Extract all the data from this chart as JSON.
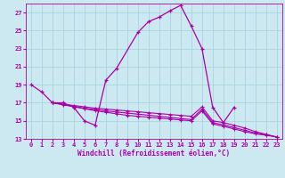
{
  "xlabel": "Windchill (Refroidissement éolien,°C)",
  "bg_color": "#cce8f0",
  "grid_color": "#a8d4e0",
  "line_color": "#aa00aa",
  "xlim": [
    -0.5,
    23.5
  ],
  "ylim": [
    13,
    28
  ],
  "xticks": [
    0,
    1,
    2,
    3,
    4,
    5,
    6,
    7,
    8,
    9,
    10,
    11,
    12,
    13,
    14,
    15,
    16,
    17,
    18,
    19,
    20,
    21,
    22,
    23
  ],
  "yticks": [
    13,
    15,
    17,
    19,
    21,
    23,
    25,
    27
  ],
  "main_x": [
    0,
    1,
    2,
    3,
    4,
    5,
    6,
    7,
    8,
    10,
    11,
    12,
    13,
    14,
    15,
    16,
    17,
    18,
    19
  ],
  "main_y": [
    19.0,
    18.2,
    17.0,
    17.0,
    16.5,
    15.0,
    14.5,
    19.5,
    20.8,
    24.8,
    26.0,
    26.5,
    27.2,
    27.8,
    25.5,
    23.0,
    16.5,
    14.8,
    16.5
  ],
  "flat1_x": [
    2,
    3,
    4,
    5,
    6,
    7,
    8,
    9,
    10,
    11,
    12,
    13,
    14,
    15,
    16,
    17,
    18,
    19,
    20,
    21,
    22,
    23
  ],
  "flat1_y": [
    17.0,
    16.85,
    16.7,
    16.55,
    16.4,
    16.3,
    16.2,
    16.1,
    16.0,
    15.9,
    15.8,
    15.7,
    15.6,
    15.5,
    16.55,
    15.0,
    14.8,
    14.5,
    14.2,
    13.8,
    13.5,
    13.2
  ],
  "flat2_x": [
    2,
    3,
    4,
    5,
    6,
    7,
    8,
    9,
    10,
    11,
    12,
    13,
    14,
    15,
    16,
    17,
    18,
    19,
    20,
    21,
    22,
    23
  ],
  "flat2_y": [
    17.0,
    16.8,
    16.6,
    16.4,
    16.25,
    16.1,
    15.98,
    15.86,
    15.74,
    15.62,
    15.5,
    15.38,
    15.26,
    15.14,
    16.3,
    14.8,
    14.55,
    14.25,
    13.95,
    13.65,
    13.45,
    13.2
  ],
  "flat3_x": [
    2,
    3,
    4,
    5,
    6,
    7,
    8,
    9,
    10,
    11,
    12,
    13,
    14,
    15,
    16,
    17,
    18,
    19,
    20,
    21,
    22,
    23
  ],
  "flat3_y": [
    17.0,
    16.78,
    16.56,
    16.34,
    16.12,
    15.95,
    15.78,
    15.61,
    15.5,
    15.4,
    15.3,
    15.2,
    15.1,
    15.0,
    16.1,
    14.65,
    14.4,
    14.1,
    13.8,
    13.55,
    13.4,
    13.2
  ]
}
